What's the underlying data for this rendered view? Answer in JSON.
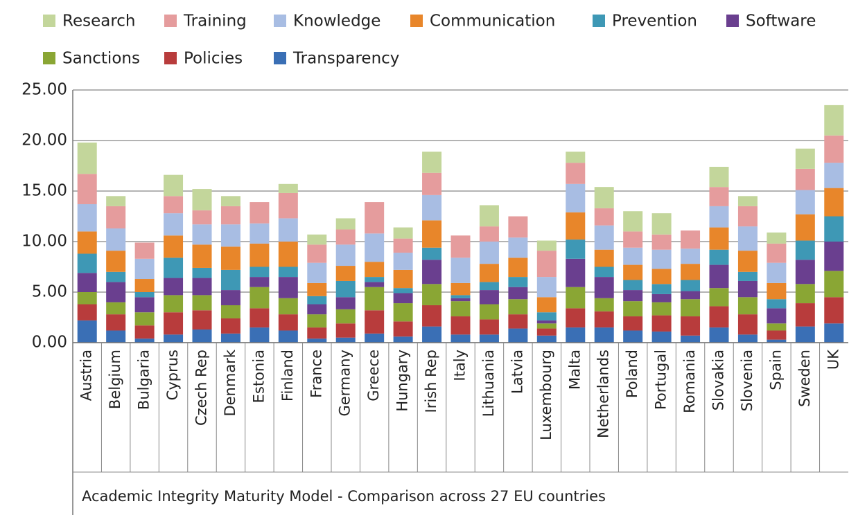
{
  "chart_data": {
    "type": "stacked_bar",
    "x_label": "Academic Integrity Maturity Model - Comparison across 27 EU countries",
    "categories": [
      "Austria",
      "Belgium",
      "Bulgaria",
      "Cyprus",
      "Czech Rep",
      "Denmark",
      "Estonia",
      "Finland",
      "France",
      "Germany",
      "Greece",
      "Hungary",
      "Irish Rep",
      "Italy",
      "Lithuania",
      "Latvia",
      "Luxembourg",
      "Malta",
      "Netherlands",
      "Poland",
      "Portugal",
      "Romania",
      "Slovakia",
      "Slovenia",
      "Spain",
      "Sweden",
      "UK"
    ],
    "series": [
      {
        "name": "Research",
        "color": "#c3d69b",
        "values": [
          3.1,
          1.0,
          0,
          2.1,
          2.1,
          1.0,
          0,
          0.9,
          1.0,
          1.1,
          0,
          1.1,
          2.1,
          0,
          2.1,
          0,
          1.0,
          1.1,
          2.1,
          2.0,
          2.1,
          0,
          2.0,
          1.0,
          1.1,
          2.0,
          3.0
        ]
      },
      {
        "name": "Training",
        "color": "#e59c9d",
        "values": [
          3.0,
          2.2,
          1.6,
          1.7,
          1.4,
          1.8,
          2.1,
          2.5,
          1.8,
          1.5,
          3.1,
          1.4,
          2.2,
          2.2,
          1.5,
          2.1,
          2.6,
          2.1,
          1.7,
          1.6,
          1.5,
          1.8,
          1.9,
          2.0,
          1.9,
          2.1,
          2.7
        ]
      },
      {
        "name": "Knowledge",
        "color": "#a8bde3",
        "values": [
          2.7,
          2.2,
          2.0,
          2.2,
          2.0,
          2.2,
          2.0,
          2.3,
          2.0,
          2.1,
          2.8,
          1.7,
          2.5,
          2.5,
          2.2,
          2.0,
          2.0,
          2.8,
          2.4,
          1.7,
          1.9,
          1.5,
          2.1,
          2.4,
          2.0,
          2.4,
          2.5
        ]
      },
      {
        "name": "Communication",
        "color": "#e8862a",
        "values": [
          2.2,
          2.1,
          1.3,
          2.2,
          2.3,
          2.3,
          2.3,
          2.5,
          1.3,
          1.5,
          1.5,
          1.8,
          2.7,
          1.2,
          1.8,
          1.9,
          1.5,
          2.7,
          1.7,
          1.5,
          1.5,
          1.6,
          2.2,
          2.1,
          1.6,
          2.6,
          2.8
        ]
      },
      {
        "name": "Prevention",
        "color": "#3e98b5",
        "values": [
          1.9,
          1.0,
          0.5,
          2.0,
          1.0,
          2.0,
          1.0,
          1.0,
          0.8,
          1.6,
          0.5,
          0.5,
          1.2,
          0.3,
          0.8,
          1.0,
          0.8,
          1.9,
          1.0,
          1.0,
          1.0,
          1.1,
          1.5,
          0.9,
          0.9,
          1.9,
          2.5
        ]
      },
      {
        "name": "Software",
        "color": "#6a3f8f",
        "values": [
          1.9,
          2.0,
          1.5,
          1.7,
          1.7,
          1.5,
          1.0,
          2.1,
          1.0,
          1.2,
          0.5,
          1.0,
          2.4,
          0.3,
          1.4,
          1.2,
          0.3,
          2.8,
          2.1,
          1.1,
          0.8,
          0.8,
          2.3,
          1.6,
          1.5,
          2.4,
          2.9
        ]
      },
      {
        "name": "Sanctions",
        "color": "#8aa634",
        "values": [
          1.2,
          1.2,
          1.3,
          1.7,
          1.5,
          1.3,
          2.1,
          1.6,
          1.3,
          1.4,
          2.3,
          1.8,
          2.1,
          1.5,
          1.5,
          1.5,
          0.5,
          2.1,
          1.3,
          1.5,
          1.3,
          1.7,
          1.8,
          1.7,
          0.7,
          1.9,
          2.6
        ]
      },
      {
        "name": "Policies",
        "color": "#b83c3c",
        "values": [
          1.6,
          1.6,
          1.3,
          2.2,
          1.9,
          1.5,
          1.9,
          1.6,
          1.1,
          1.4,
          2.3,
          1.5,
          2.1,
          1.8,
          1.5,
          1.4,
          0.7,
          1.9,
          1.6,
          1.4,
          1.6,
          1.9,
          2.1,
          2.0,
          0.9,
          2.3,
          2.6
        ]
      },
      {
        "name": "Transparency",
        "color": "#3a6fb5",
        "values": [
          2.2,
          1.2,
          0.4,
          0.8,
          1.3,
          0.9,
          1.5,
          1.2,
          0.4,
          0.5,
          0.9,
          0.6,
          1.6,
          0.8,
          0.8,
          1.4,
          0.7,
          1.5,
          1.5,
          1.2,
          1.1,
          0.7,
          1.5,
          0.8,
          0.3,
          1.6,
          1.9
        ]
      }
    ],
    "ylim": [
      0,
      25
    ],
    "yticks": [
      {
        "value": 0,
        "label": "0.00"
      },
      {
        "value": 5,
        "label": "5.00"
      },
      {
        "value": 10,
        "label": "10.00"
      },
      {
        "value": 15,
        "label": "15.00"
      },
      {
        "value": 20,
        "label": "20.00"
      },
      {
        "value": 25,
        "label": "25.00"
      }
    ],
    "grid": true,
    "legend": "top"
  }
}
